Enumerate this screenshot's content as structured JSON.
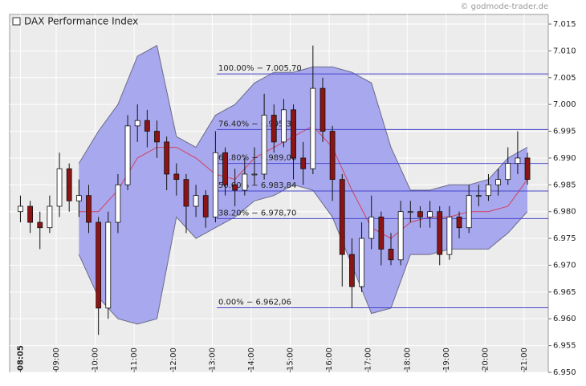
{
  "chart_data": {
    "type": "candlestick",
    "title": "DAX Performance Index",
    "watermark": "© godmode-trader.de",
    "ylim": [
      6950,
      7015
    ],
    "yticks": [
      {
        "value": 6950,
        "label": "6.950"
      },
      {
        "value": 6955,
        "label": "6.955"
      },
      {
        "value": 6960,
        "label": "6.960"
      },
      {
        "value": 6965,
        "label": "6.965"
      },
      {
        "value": 6970,
        "label": "6.970"
      },
      {
        "value": 6975,
        "label": "6.975"
      },
      {
        "value": 6980,
        "label": "6.980"
      },
      {
        "value": 6985,
        "label": "6.985"
      },
      {
        "value": 6990,
        "label": "6.990"
      },
      {
        "value": 6995,
        "label": "6.995"
      },
      {
        "value": 7000,
        "label": "7.000"
      },
      {
        "value": 7005,
        "label": "7.005"
      },
      {
        "value": 7010,
        "label": "7.010"
      },
      {
        "value": 7015,
        "label": "7.015"
      }
    ],
    "xticks": [
      "08:05",
      "09:00",
      "10:00",
      "11:00",
      "12:00",
      "13:00",
      "14:00",
      "15:00",
      "16:00",
      "17:00",
      "18:00",
      "19:00",
      "20:00",
      "21:00"
    ],
    "grid": true,
    "candles": {
      "x": [
        "08:05",
        "08:20",
        "08:35",
        "08:50",
        "09:05",
        "09:20",
        "09:35",
        "09:50",
        "10:05",
        "10:20",
        "10:35",
        "10:50",
        "11:05",
        "11:20",
        "11:35",
        "11:50",
        "12:05",
        "12:20",
        "12:35",
        "12:50",
        "13:05",
        "13:20",
        "13:35",
        "13:50",
        "14:05",
        "14:20",
        "14:35",
        "14:50",
        "15:05",
        "15:20",
        "15:35",
        "15:50",
        "16:05",
        "16:20",
        "16:35",
        "16:50",
        "17:05",
        "17:20",
        "17:35",
        "17:50",
        "18:05",
        "18:20",
        "18:35",
        "18:50",
        "19:05",
        "19:20",
        "19:35",
        "19:50",
        "20:05",
        "20:20",
        "20:35",
        "20:50",
        "21:05"
      ],
      "open": [
        6980,
        6981,
        6978,
        6977,
        6981,
        6988,
        6982,
        6983,
        6978,
        6962,
        6978,
        6985,
        6996,
        6997,
        6995,
        6993,
        6987,
        6986,
        6981,
        6983,
        6979,
        6991,
        6985,
        6984,
        6987,
        6987,
        6998,
        6993,
        6999,
        6990,
        6988,
        7003,
        6995,
        6986,
        6972,
        6966,
        6975,
        6979,
        6973,
        6971,
        6980,
        6980,
        6979,
        6980,
        6972,
        6979,
        6977,
        6983,
        6983,
        6985,
        6986,
        6989,
        6990
      ],
      "high": [
        6983,
        6982,
        6980,
        6983,
        6991,
        6989,
        6986,
        6985,
        6979,
        6980,
        6987,
        6998,
        7000,
        6999,
        6997,
        6994,
        6989,
        6987,
        6985,
        6984,
        6995,
        6992,
        6988,
        6990,
        6992,
        7002,
        7000,
        7001,
        7000,
        6993,
        7011,
        7005,
        6996,
        6987,
        6975,
        6978,
        6983,
        6980,
        6976,
        6982,
        6982,
        6981,
        6982,
        6981,
        6981,
        6980,
        6985,
        6985,
        6987,
        6988,
        6992,
        6995,
        6991
      ],
      "low": [
        6978,
        6976,
        6973,
        6976,
        6979,
        6980,
        6979,
        6976,
        6957,
        6960,
        6976,
        6984,
        6993,
        6992,
        6990,
        6984,
        6983,
        6976,
        6979,
        6977,
        6978,
        6983,
        6981,
        6983,
        6985,
        6986,
        6991,
        6992,
        6986,
        6985,
        6987,
        6993,
        6982,
        6966,
        6962,
        6965,
        6973,
        6970,
        6970,
        6970,
        6978,
        6977,
        6977,
        6970,
        6971,
        6975,
        6976,
        6981,
        6982,
        6983,
        6985,
        6987,
        6985
      ],
      "close": [
        6981,
        6978,
        6977,
        6981,
        6988,
        6982,
        6983,
        6978,
        6962,
        6978,
        6985,
        6996,
        6997,
        6995,
        6993,
        6987,
        6986,
        6981,
        6983,
        6979,
        6991,
        6985,
        6984,
        6987,
        6987,
        6998,
        6993,
        6999,
        6990,
        6988,
        7003,
        6995,
        6986,
        6972,
        6966,
        6975,
        6979,
        6973,
        6971,
        6980,
        6980,
        6979,
        6980,
        6972,
        6979,
        6977,
        6983,
        6983,
        6985,
        6986,
        6989,
        6990,
        6986
      ],
      "up_color": "#ffffff",
      "down_color": "#8b1414"
    },
    "bands": {
      "x": [
        "09:35",
        "10:05",
        "10:35",
        "11:05",
        "11:35",
        "12:05",
        "12:35",
        "13:05",
        "13:35",
        "14:05",
        "14:35",
        "15:05",
        "15:35",
        "16:05",
        "16:35",
        "17:05",
        "17:35",
        "18:05",
        "18:35",
        "19:05",
        "19:35",
        "20:05",
        "20:35",
        "21:05"
      ],
      "upper": [
        6989,
        6995,
        7000,
        7009,
        7011,
        6994,
        6992,
        6998,
        7000,
        7004,
        7006,
        7006,
        7007,
        7007,
        7006,
        7004,
        6992,
        6984,
        6984,
        6985,
        6985,
        6986,
        6990,
        6992
      ],
      "middle": [
        6980,
        6980,
        6984,
        6990,
        6992,
        6992,
        6990,
        6987,
        6986,
        6990,
        6992,
        6994,
        6996,
        6992,
        6984,
        6977,
        6975,
        6978,
        6979,
        6979,
        6980,
        6980,
        6981,
        6986
      ],
      "lower": [
        6972,
        6964,
        6960,
        6959,
        6960,
        6979,
        6975,
        6977,
        6979,
        6982,
        6983,
        6985,
        6984,
        6979,
        6970,
        6961,
        6962,
        6972,
        6972,
        6973,
        6973,
        6973,
        6976,
        6980
      ],
      "fill_color": "#a8a8ee",
      "edge_color": "#6a6a88",
      "middle_color": "#d4405c"
    },
    "fib_levels": {
      "color": "#4646cc",
      "levels": [
        {
          "value": 7005.7,
          "label": "100.00% − 7.005,70"
        },
        {
          "value": 6995.33,
          "label": "76.40% − 6.995,33"
        },
        {
          "value": 6989.0,
          "label": "61.80% − 6.989,00"
        },
        {
          "value": 6983.84,
          "label": "50.00% − 6.983,84"
        },
        {
          "value": 6978.7,
          "label": "38.20% − 6.978,70"
        },
        {
          "value": 6962.06,
          "label": "0.00% − 6.962,06"
        }
      ]
    }
  }
}
